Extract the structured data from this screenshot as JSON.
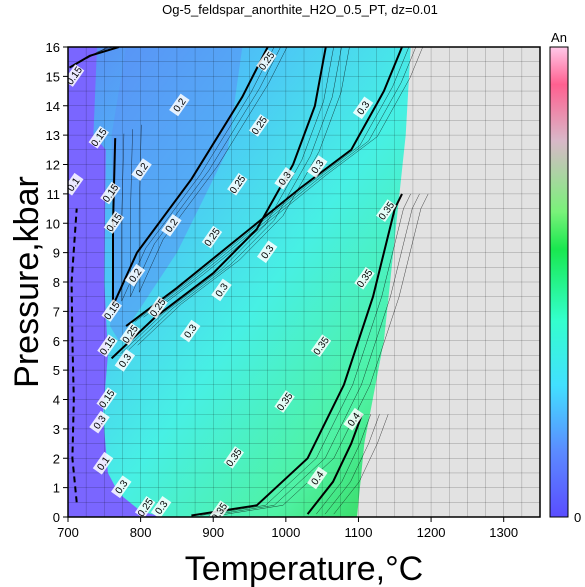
{
  "chart_data": {
    "type": "contour",
    "title": "Og-5_feldspar_anorthite_H2O_0.5_PT, dz=0.01",
    "xlabel": "Temperature,°C",
    "ylabel": "Pressure,kbar",
    "xlim": [
      700,
      1350
    ],
    "ylim": [
      0,
      16
    ],
    "xticks": [
      700,
      800,
      900,
      1000,
      1100,
      1200,
      1300
    ],
    "yticks": [
      0,
      1,
      2,
      3,
      4,
      5,
      6,
      7,
      8,
      9,
      10,
      11,
      12,
      13,
      14,
      15,
      16
    ],
    "grid": true,
    "colorbar": {
      "label": "An",
      "min_label": "0"
    },
    "contours": [
      {
        "level": 0.15,
        "points": [
          [
            702,
            15.3
          ],
          [
            730,
            15.7
          ],
          [
            770,
            16.0
          ]
        ]
      },
      {
        "level": 0.2,
        "points": [
          [
            765,
            12.9
          ],
          [
            762,
            10.0
          ],
          [
            762,
            7.2
          ],
          [
            795,
            9.0
          ],
          [
            870,
            11.5
          ],
          [
            940,
            14.3
          ],
          [
            975,
            16.0
          ]
        ]
      },
      {
        "level": 0.25,
        "points": [
          [
            760,
            5.4
          ],
          [
            820,
            6.8
          ],
          [
            900,
            8.3
          ],
          [
            960,
            9.8
          ],
          [
            1010,
            12.0
          ],
          [
            1040,
            14.0
          ],
          [
            1055,
            16.0
          ]
        ]
      },
      {
        "level": 0.3,
        "points": [
          [
            780,
            6.5
          ],
          [
            850,
            7.8
          ],
          [
            940,
            9.6
          ],
          [
            1020,
            11.2
          ],
          [
            1090,
            12.5
          ],
          [
            1135,
            14.5
          ],
          [
            1160,
            16.0
          ]
        ]
      },
      {
        "level": 0.35,
        "points": [
          [
            870,
            0.05
          ],
          [
            960,
            0.4
          ],
          [
            1030,
            2.0
          ],
          [
            1080,
            4.5
          ],
          [
            1120,
            7.5
          ],
          [
            1150,
            10.5
          ],
          [
            1160,
            11.0
          ]
        ]
      },
      {
        "level": 0.4,
        "points": [
          [
            1030,
            0.1
          ],
          [
            1065,
            1.2
          ],
          [
            1090,
            2.5
          ],
          [
            1105,
            3.5
          ]
        ]
      }
    ],
    "contour_labels": [
      {
        "text": "0.15",
        "x": 710,
        "y": 15.0
      },
      {
        "text": "0.15",
        "x": 744,
        "y": 12.9
      },
      {
        "text": "0.15",
        "x": 765,
        "y": 10.0
      },
      {
        "text": "0.15",
        "x": 762,
        "y": 7.0
      },
      {
        "text": "0.15",
        "x": 756,
        "y": 5.8
      },
      {
        "text": "0.15",
        "x": 755,
        "y": 4.0
      },
      {
        "text": "0.15",
        "x": 760,
        "y": 11.0
      },
      {
        "text": "0.1",
        "x": 709,
        "y": 11.3
      },
      {
        "text": "0.1",
        "x": 750,
        "y": 1.8
      },
      {
        "text": "0.2",
        "x": 855,
        "y": 14.0
      },
      {
        "text": "0.2",
        "x": 803,
        "y": 11.8
      },
      {
        "text": "0.2",
        "x": 844,
        "y": 9.9
      },
      {
        "text": "0.2",
        "x": 794,
        "y": 8.2
      },
      {
        "text": "0.25",
        "x": 975,
        "y": 15.5
      },
      {
        "text": "0.25",
        "x": 965,
        "y": 13.3
      },
      {
        "text": "0.25",
        "x": 935,
        "y": 11.3
      },
      {
        "text": "0.25",
        "x": 900,
        "y": 9.5
      },
      {
        "text": "0.25",
        "x": 825,
        "y": 7.1
      },
      {
        "text": "0.25",
        "x": 787,
        "y": 6.2
      },
      {
        "text": "0.25",
        "x": 808,
        "y": 0.3
      },
      {
        "text": "0.3",
        "x": 1108,
        "y": 13.9
      },
      {
        "text": "0.3",
        "x": 1000,
        "y": 11.5
      },
      {
        "text": "0.3",
        "x": 1045,
        "y": 11.9
      },
      {
        "text": "0.3",
        "x": 976,
        "y": 9.0
      },
      {
        "text": "0.3",
        "x": 913,
        "y": 7.7
      },
      {
        "text": "0.3",
        "x": 870,
        "y": 6.3
      },
      {
        "text": "0.3",
        "x": 780,
        "y": 5.3
      },
      {
        "text": "0.3",
        "x": 745,
        "y": 3.2
      },
      {
        "text": "0.3",
        "x": 775,
        "y": 1.0
      },
      {
        "text": "0.3",
        "x": 830,
        "y": 0.3
      },
      {
        "text": "0.35",
        "x": 1140,
        "y": 10.4
      },
      {
        "text": "0.35",
        "x": 1110,
        "y": 8.1
      },
      {
        "text": "0.35",
        "x": 1050,
        "y": 5.8
      },
      {
        "text": "0.35",
        "x": 1000,
        "y": 3.9
      },
      {
        "text": "0.35",
        "x": 930,
        "y": 2.0
      },
      {
        "text": "0.35",
        "x": 910,
        "y": 0.15
      },
      {
        "text": "0.4",
        "x": 1095,
        "y": 3.3
      },
      {
        "text": "0.4",
        "x": 1045,
        "y": 1.3
      }
    ]
  }
}
